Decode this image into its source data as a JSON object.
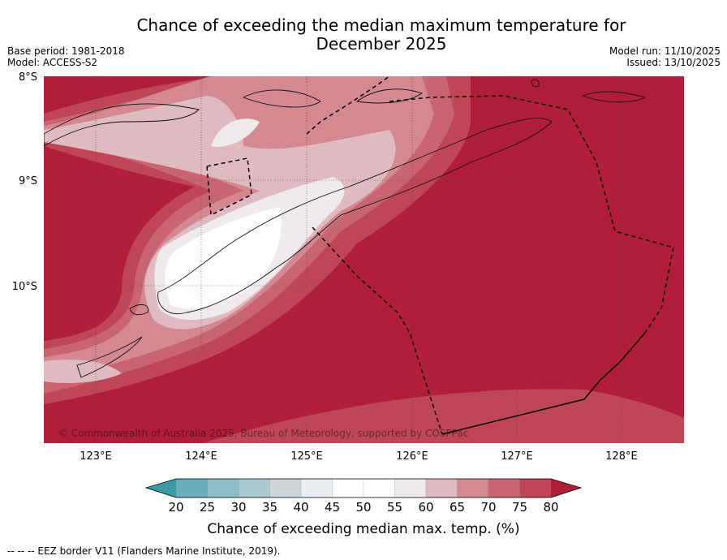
{
  "header": {
    "title_line1": "Chance of exceeding the median maximum temperature for",
    "title_line2": "December 2025",
    "base_period": "Base period: 1981-2018",
    "model": "Model: ACCESS-S2",
    "model_run": "Model run: 11/10/2025",
    "issued": "Issued: 13/10/2025"
  },
  "map": {
    "lat_labels": [
      "8°S",
      "9°S",
      "10°S"
    ],
    "lon_labels": [
      "123°E",
      "124°E",
      "125°E",
      "126°E",
      "127°E",
      "128°E"
    ],
    "copyright": "© Commonwealth of Australia 2025, Bureau of Meteorology, supported by COSPPac"
  },
  "legend": {
    "title": "Chance of exceeding median max. temp. (%)",
    "tick_labels": [
      "20",
      "25",
      "30",
      "35",
      "40",
      "45",
      "50",
      "55",
      "60",
      "65",
      "70",
      "75",
      "80"
    ],
    "band_colors": [
      "#3c9aa7",
      "#6aadbb",
      "#8cbcc6",
      "#a9c9ce",
      "#cdd6d8",
      "#e9eff2",
      "#ffffff",
      "#ffffff",
      "#efebec",
      "#dfbac0",
      "#d4888f",
      "#c86570",
      "#bf4655",
      "#b01e3a"
    ]
  },
  "footnote": "--  --  -- EEZ border V11 (Flanders Marine Institute, 2019)."
}
